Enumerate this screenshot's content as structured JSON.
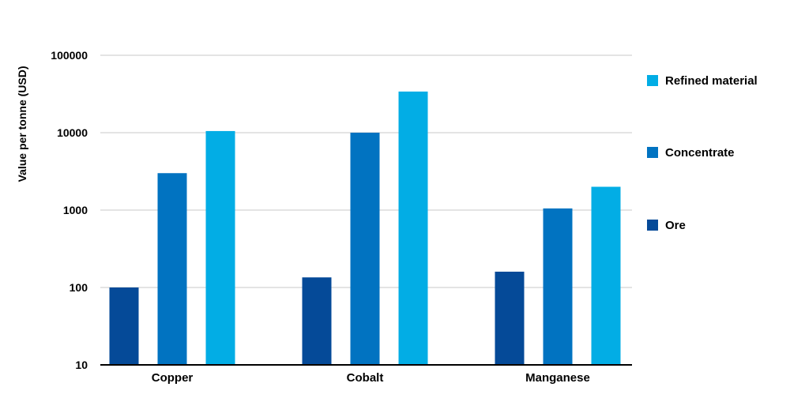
{
  "chart_data": {
    "type": "bar",
    "title": "",
    "xlabel": "",
    "ylabel": "Value per tonne (USD)",
    "y_scale": "log",
    "ylim": [
      10,
      100000
    ],
    "y_ticks": [
      "10",
      "100",
      "1000",
      "10000",
      "100000"
    ],
    "categories": [
      "Copper",
      "Cobalt",
      "Manganese"
    ],
    "series": [
      {
        "name": "Ore",
        "values": [
          100,
          135,
          160
        ],
        "color": "#054a98"
      },
      {
        "name": "Concentrate",
        "values": [
          3000,
          10000,
          1050
        ],
        "color": "#0173c1"
      },
      {
        "name": "Refined material",
        "values": [
          10500,
          34000,
          2000
        ],
        "color": "#02ade5"
      }
    ],
    "legend": {
      "position": "right",
      "order": [
        "Refined material",
        "Concentrate",
        "Ore"
      ]
    },
    "grid": true
  }
}
